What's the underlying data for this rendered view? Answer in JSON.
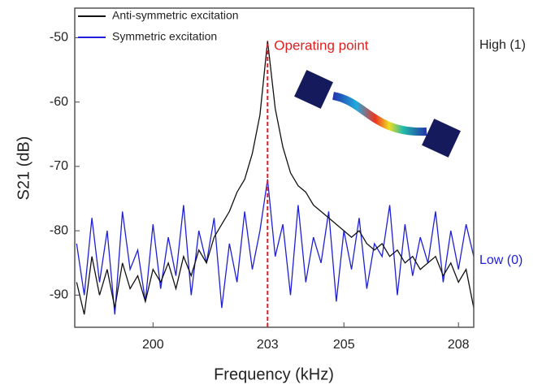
{
  "chart_data": {
    "type": "line",
    "xlabel": "Frequency (kHz)",
    "ylabel": "S21 (dB)",
    "x": [
      198.0,
      198.2,
      198.4,
      198.6,
      198.8,
      199.0,
      199.2,
      199.4,
      199.6,
      199.8,
      200.0,
      200.2,
      200.4,
      200.6,
      200.8,
      201.0,
      201.2,
      201.4,
      201.6,
      201.8,
      202.0,
      202.2,
      202.4,
      202.6,
      202.8,
      203.0,
      203.2,
      203.4,
      203.6,
      203.8,
      204.0,
      204.2,
      204.4,
      204.6,
      204.8,
      205.0,
      205.2,
      205.4,
      205.6,
      205.8,
      206.0,
      206.2,
      206.4,
      206.6,
      206.8,
      207.0,
      207.2,
      207.4,
      207.6,
      207.8,
      208.0,
      208.2,
      208.4
    ],
    "series": [
      {
        "name": "Anti-symmetric excitation",
        "color": "#111111",
        "values": [
          -88,
          -93,
          -84,
          -90,
          -86,
          -92,
          -85,
          -89,
          -87,
          -91,
          -86,
          -88,
          -85,
          -89,
          -84,
          -87,
          -83,
          -85,
          -81,
          -79,
          -77,
          -74,
          -72,
          -68,
          -62,
          -50.5,
          -61,
          -67,
          -71,
          -73,
          -74,
          -76,
          -77,
          -78,
          -79,
          -80,
          -81,
          -80,
          -82,
          -83,
          -82,
          -84,
          -83,
          -85,
          -84,
          -86,
          -85,
          -84,
          -87,
          -85,
          -88,
          -86,
          -92
        ]
      },
      {
        "name": "Symmetric excitation",
        "color": "#1f1fd6",
        "values": [
          -82,
          -90,
          -78,
          -88,
          -80,
          -93,
          -77,
          -86,
          -83,
          -91,
          -79,
          -89,
          -81,
          -87,
          -76,
          -90,
          -80,
          -85,
          -78,
          -92,
          -82,
          -88,
          -77,
          -86,
          -80,
          -72,
          -84,
          -79,
          -90,
          -76,
          -88,
          -81,
          -85,
          -77,
          -91,
          -80,
          -86,
          -78,
          -89,
          -82,
          -84,
          -76,
          -90,
          -79,
          -87,
          -81,
          -85,
          -77,
          -88,
          -80,
          -86,
          -79,
          -84
        ]
      }
    ],
    "xlim": [
      197.95,
      208.4
    ],
    "ylim": [
      -95,
      -45.4
    ],
    "xticks": [
      200,
      203,
      205,
      208
    ],
    "yticks": [
      -90,
      -80,
      -70,
      -60,
      -50
    ],
    "annotations": [
      {
        "text": "Operating point",
        "x": 203.0,
        "color": "#e02020"
      },
      {
        "text": "High (1)"
      },
      {
        "text": "Low (0)"
      }
    ]
  }
}
